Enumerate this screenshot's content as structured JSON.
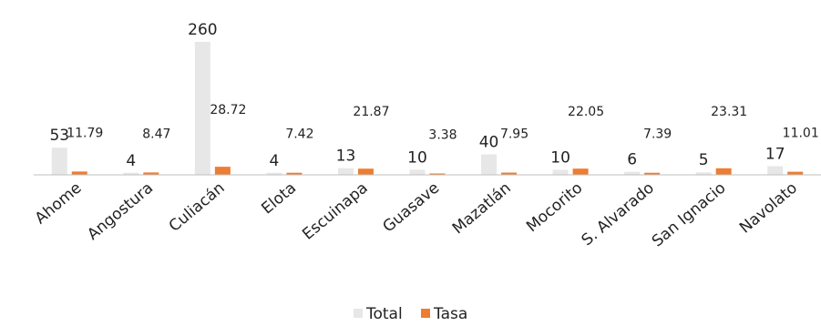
{
  "chart_data": {
    "type": "bar",
    "categories": [
      "Ahome",
      "Angostura",
      "Culiacán",
      "Elota",
      "Escuinapa",
      "Guasave",
      "Mazatlán",
      "Mocorito",
      "S. Alvarado",
      "San Ignacio",
      "Navolato"
    ],
    "series": [
      {
        "name": "Total",
        "values": [
          53,
          4,
          260,
          4,
          13,
          10,
          40,
          10,
          6,
          5,
          17
        ],
        "labels": [
          "53",
          "4",
          "260",
          "4",
          "13",
          "10",
          "40",
          "10",
          "6",
          "5",
          "17"
        ],
        "color": "#e7e7e7"
      },
      {
        "name": "Tasa",
        "values": [
          11.79,
          8.47,
          28.72,
          7.42,
          21.87,
          3.38,
          7.95,
          22.05,
          7.39,
          23.31,
          11.01
        ],
        "labels": [
          "11.79",
          "8.47",
          "28.72",
          "7.42",
          "21.87",
          "3.38",
          "7.95",
          "22.05",
          "7.39",
          "23.31",
          "11.01"
        ],
        "color": "#ed7d31"
      }
    ],
    "title": "",
    "xlabel": "",
    "ylabel": "",
    "ylim": [
      0,
      260
    ],
    "grid": false,
    "legend": "bottom",
    "axis_color": "#bfbfbf"
  }
}
